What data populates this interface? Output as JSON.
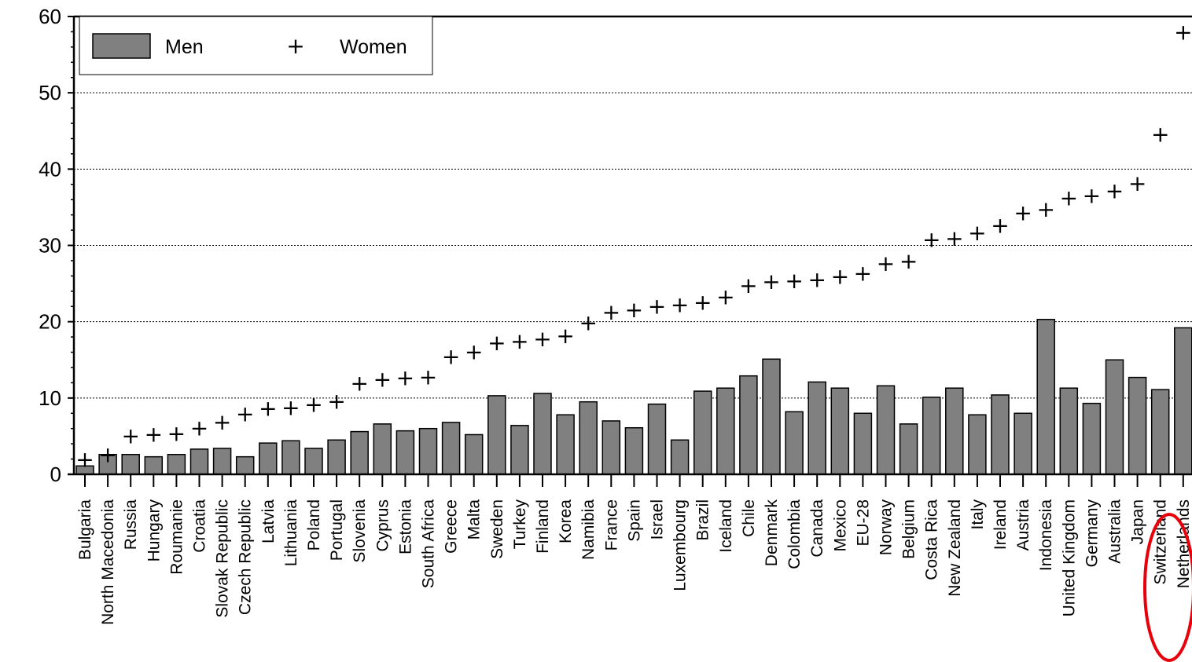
{
  "chart_data": {
    "type": "bar",
    "title": "",
    "xlabel": "",
    "ylabel": "",
    "ylim": [
      0,
      60
    ],
    "yticks": [
      0,
      10,
      20,
      30,
      40,
      50,
      60
    ],
    "grid": true,
    "legend_position": "top-left",
    "colors": {
      "bar": "#808080",
      "marker": "#000000",
      "highlight": "#e8000b"
    },
    "categories": [
      "Bulgaria",
      "North Macedonia",
      "Russia",
      "Hungary",
      "Roumanie",
      "Croatia",
      "Slovak Republic",
      "Czech Republic",
      "Latvia",
      "Lithuania",
      "Poland",
      "Portugal",
      "Slovenia",
      "Cyprus",
      "Estonia",
      "South Africa",
      "Greece",
      "Malta",
      "Sweden",
      "Turkey",
      "Finland",
      "Korea",
      "Namibia",
      "France",
      "Spain",
      "Israel",
      "Luxembourg",
      "Brazil",
      "Iceland",
      "Chile",
      "Denmark",
      "Colombia",
      "Canada",
      "Mexico",
      "EU-28",
      "Norway",
      "Belgium",
      "Costa Rica",
      "New Zealand",
      "Italy",
      "Ireland",
      "Austria",
      "Indonesia",
      "United Kingdom",
      "Germany",
      "Australia",
      "Japan",
      "Switzerland",
      "Netherlands"
    ],
    "series": [
      {
        "name": "Men",
        "kind": "bar",
        "values": [
          1.1,
          2.6,
          2.6,
          2.3,
          2.6,
          3.3,
          3.4,
          2.3,
          4.1,
          4.4,
          3.4,
          4.5,
          5.6,
          6.6,
          5.7,
          6.0,
          6.8,
          5.2,
          10.3,
          6.4,
          10.6,
          7.8,
          9.5,
          7.0,
          6.1,
          9.2,
          4.5,
          10.9,
          11.3,
          12.9,
          15.1,
          8.2,
          12.1,
          11.3,
          8.0,
          11.6,
          6.6,
          10.1,
          11.3,
          7.8,
          10.4,
          8.0,
          20.3,
          11.3,
          9.3,
          15.0,
          12.7,
          11.1,
          19.2
        ]
      },
      {
        "name": "Women",
        "kind": "marker",
        "values": [
          2.0,
          2.6,
          5.1,
          5.3,
          5.4,
          6.1,
          6.9,
          8.0,
          8.7,
          8.8,
          9.2,
          9.6,
          12.0,
          12.5,
          12.7,
          12.8,
          15.5,
          16.1,
          17.3,
          17.5,
          17.8,
          18.2,
          19.9,
          21.3,
          21.6,
          22.1,
          22.3,
          22.6,
          23.3,
          24.8,
          25.3,
          25.4,
          25.6,
          26.0,
          26.4,
          27.7,
          28.0,
          30.8,
          31.0,
          31.7,
          32.7,
          34.3,
          34.8,
          36.3,
          36.6,
          37.2,
          38.2,
          44.6,
          58.0
        ]
      }
    ],
    "highlighted_category": "Switzerland"
  }
}
